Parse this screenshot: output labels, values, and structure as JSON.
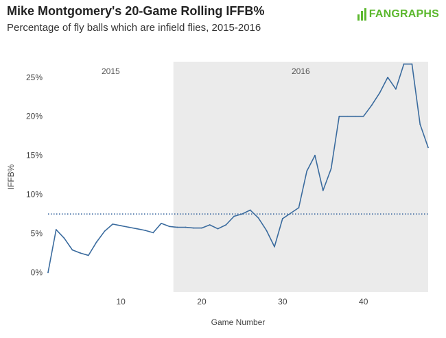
{
  "header": {
    "title": "Mike Montgomery's 20-Game Rolling IFFB%",
    "subtitle": "Percentage of fly balls which are infield flies, 2015-2016",
    "logo_text": "FANGRAPHS"
  },
  "colors": {
    "line": "#3a6b9e",
    "reference": "#2f5f9a",
    "season_shade": "#ebebeb",
    "logo": "#5cb82e"
  },
  "chart_data": {
    "type": "line",
    "xlabel": "Game Number",
    "ylabel": "IFFB%",
    "xlim": [
      1,
      48
    ],
    "ylim": [
      -2.5,
      27
    ],
    "x_ticks": [
      10,
      20,
      30,
      40
    ],
    "y_ticks": [
      {
        "value": 0,
        "label": "0%"
      },
      {
        "value": 5,
        "label": "5%"
      },
      {
        "value": 10,
        "label": "10%"
      },
      {
        "value": 15,
        "label": "15%"
      },
      {
        "value": 20,
        "label": "20%"
      },
      {
        "value": 25,
        "label": "25%"
      }
    ],
    "seasons": [
      {
        "label": "2015",
        "start": 1,
        "end": 16.5,
        "shaded": false
      },
      {
        "label": "2016",
        "start": 16.5,
        "end": 48,
        "shaded": true
      }
    ],
    "reference_line": {
      "value": 7.5,
      "style": "dotted"
    },
    "series": [
      {
        "x": [
          1,
          2,
          3,
          4,
          5,
          6,
          7,
          8,
          9,
          10,
          11,
          12,
          13,
          14,
          15,
          16,
          17,
          18,
          19,
          20,
          21,
          22,
          23,
          24,
          25,
          26,
          27,
          28,
          29,
          30,
          31,
          32,
          33,
          34,
          35,
          36,
          37,
          38,
          39,
          40,
          41,
          42,
          43,
          44,
          45,
          46,
          47,
          48
        ],
        "y": [
          0.0,
          5.5,
          4.4,
          2.9,
          2.5,
          2.2,
          3.9,
          5.3,
          6.2,
          6.0,
          5.8,
          5.6,
          5.4,
          5.1,
          6.3,
          5.9,
          5.8,
          5.8,
          5.7,
          5.7,
          6.1,
          5.6,
          6.1,
          7.2,
          7.5,
          8.0,
          7.0,
          5.4,
          3.3,
          6.9,
          7.6,
          8.3,
          13.0,
          15.0,
          10.5,
          13.3,
          20.0,
          20.0,
          20.0,
          20.0,
          21.4,
          23.0,
          25.0,
          23.5,
          26.7,
          26.7,
          19.0,
          16.0
        ]
      }
    ]
  }
}
